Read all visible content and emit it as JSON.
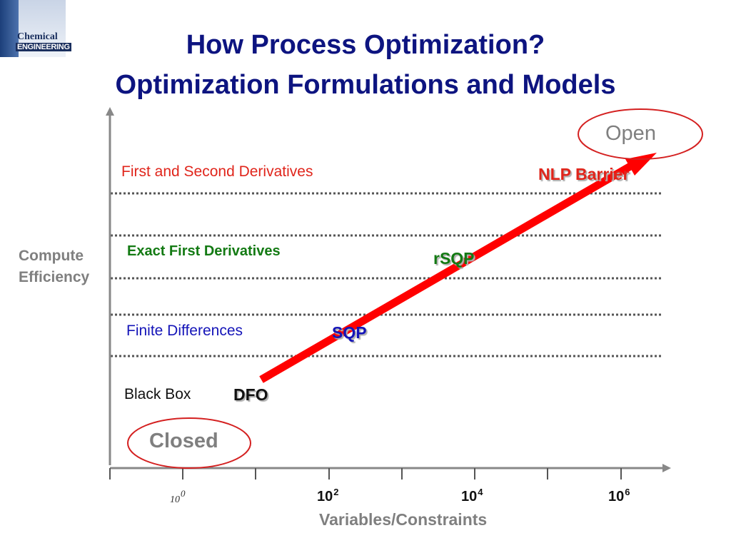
{
  "logo": {
    "line1": "Chemical",
    "line2": "ENGINEERING"
  },
  "title": {
    "line1": "How Process Optimization?",
    "line2": "Optimization Formulations and Models"
  },
  "diagram": {
    "y_axis_label_line1": "Compute",
    "y_axis_label_line2": "Efficiency",
    "x_axis_label": "Variables/Constraints",
    "x_ticks": [
      {
        "base": "10",
        "exp": "0"
      },
      {
        "base": "10",
        "exp": "2"
      },
      {
        "base": "10",
        "exp": "4"
      },
      {
        "base": "10",
        "exp": "6"
      }
    ],
    "bands": [
      {
        "label": "First and Second Derivatives",
        "color": "#e0251b"
      },
      {
        "label": "Exact First Derivatives",
        "color": "#137a13"
      },
      {
        "label": "Finite Differences",
        "color": "#1414b8"
      },
      {
        "label": "Black Box",
        "color": "#111111"
      }
    ],
    "methods": [
      {
        "label": "NLP Barrier",
        "color": "#e0251b"
      },
      {
        "label": "rSQP",
        "color": "#137a13"
      },
      {
        "label": "SQP",
        "color": "#1414b8"
      },
      {
        "label": "DFO",
        "color": "#111111"
      }
    ],
    "open_label": "Open",
    "closed_label": "Closed",
    "arrow_color": "#ff0000",
    "ellipse_color": "#d42020"
  }
}
